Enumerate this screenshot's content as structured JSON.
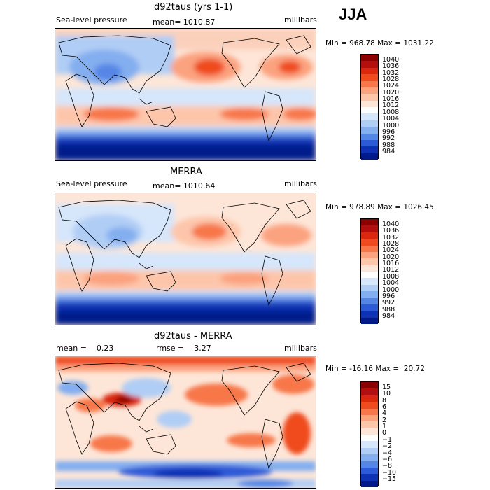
{
  "season": "JJA",
  "panels": [
    {
      "title": "d92taus (yrs 1-1)",
      "left_label": "Sea-level pressure",
      "center_label": "mean= 1010.87",
      "units": "millibars",
      "minmax": "Min = 968.78 Max = 1031.22",
      "colorbar": {
        "labels": [
          "1040",
          "1036",
          "1032",
          "1028",
          "1024",
          "1020",
          "1016",
          "1012",
          "1008",
          "1004",
          "1000",
          "996",
          "992",
          "988",
          "984"
        ],
        "colors": [
          "#8b0000",
          "#b40f0f",
          "#d9280e",
          "#ef4b1f",
          "#f7774a",
          "#fba27f",
          "#fdc6ab",
          "#fde6d8",
          "#ffffff",
          "#d6e6fb",
          "#b0cdf5",
          "#83aeef",
          "#5586e6",
          "#2d5ad7",
          "#0f32b4",
          "#001a8a"
        ]
      }
    },
    {
      "title": "MERRA",
      "left_label": "Sea-level pressure",
      "center_label": "mean= 1010.64",
      "units": "millibars",
      "minmax": "Min = 978.89 Max = 1026.45",
      "colorbar": {
        "labels": [
          "1040",
          "1036",
          "1032",
          "1028",
          "1024",
          "1020",
          "1016",
          "1012",
          "1008",
          "1004",
          "1000",
          "996",
          "992",
          "988",
          "984"
        ],
        "colors": [
          "#8b0000",
          "#b40f0f",
          "#d9280e",
          "#ef4b1f",
          "#f7774a",
          "#fba27f",
          "#fdc6ab",
          "#fde6d8",
          "#ffffff",
          "#d6e6fb",
          "#b0cdf5",
          "#83aeef",
          "#5586e6",
          "#2d5ad7",
          "#0f32b4",
          "#001a8a"
        ]
      }
    },
    {
      "title": "d92taus - MERRA",
      "left_label": "mean =    0.23",
      "center_label": "rmse =    3.27",
      "units": "millibars",
      "minmax": "Min = -16.16 Max =  20.72",
      "colorbar": {
        "labels": [
          "15",
          "10",
          "8",
          "6",
          "4",
          "2",
          "1",
          "0",
          "−1",
          "−2",
          "−4",
          "−6",
          "−8",
          "−10",
          "−15"
        ],
        "colors": [
          "#8b0000",
          "#b40f0f",
          "#d9280e",
          "#ef4b1f",
          "#f7774a",
          "#fba27f",
          "#fdc6ab",
          "#fde6d8",
          "#ffffff",
          "#d6e6fb",
          "#b0cdf5",
          "#83aeef",
          "#5586e6",
          "#2d5ad7",
          "#0f32b4",
          "#001a8a"
        ]
      }
    }
  ]
}
